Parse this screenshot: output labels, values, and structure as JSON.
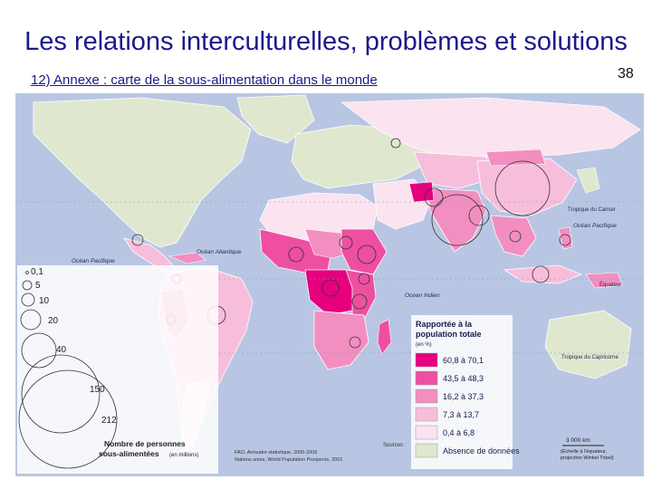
{
  "header": {
    "title": "Les relations interculturelles, problèmes et solutions",
    "subtitle": "12) Annexe : carte de la sous-alimentation dans le monde",
    "page_number": "38"
  },
  "map": {
    "ocean_color": "#b9c6e3",
    "ocean_labels": {
      "pacific_left": "Océan Pacifique",
      "atlantic": "Océan Atlantique",
      "pacific_right": "Océan Pacifique",
      "indian": "Océan Indien"
    },
    "lines": {
      "tropic_cancer": "Tropique du Cancer",
      "equator": "Équateur",
      "tropic_capricorn": "Tropique du Capricorne"
    },
    "bubble_legend": {
      "values": [
        "0,1",
        "5",
        "10",
        "20",
        "40",
        "150",
        "212"
      ],
      "title_line1": "Nombre de personnes",
      "title_line2": "sous-alimentées",
      "unit": "(en millions)"
    },
    "color_legend": {
      "title_line1": "Rapportée à la",
      "title_line2": "population totale",
      "unit": "(en %)",
      "classes": [
        {
          "label": "60,8 à 70,1",
          "color": "#e6007e"
        },
        {
          "label": "43,5 à 48,3",
          "color": "#ee4fa0"
        },
        {
          "label": "16,2 à 37,3",
          "color": "#f28ec0"
        },
        {
          "label": "7,3 à 13,7",
          "color": "#f7bedb"
        },
        {
          "label": "0,4 à 6,8",
          "color": "#fbe3ef"
        },
        {
          "label": "Absence de données",
          "color": "#dfe8cf"
        }
      ]
    },
    "scale": {
      "value": "3 000 km",
      "note_line1": "(Échelle à l'équateur,",
      "note_line2": "projection Winkel Tripel)"
    },
    "source": {
      "label": "Sources :",
      "line1": "FAO, Annuaire statistique, 2005-2006",
      "line2": "Nations unies, World Population Prospects, 2001"
    }
  }
}
